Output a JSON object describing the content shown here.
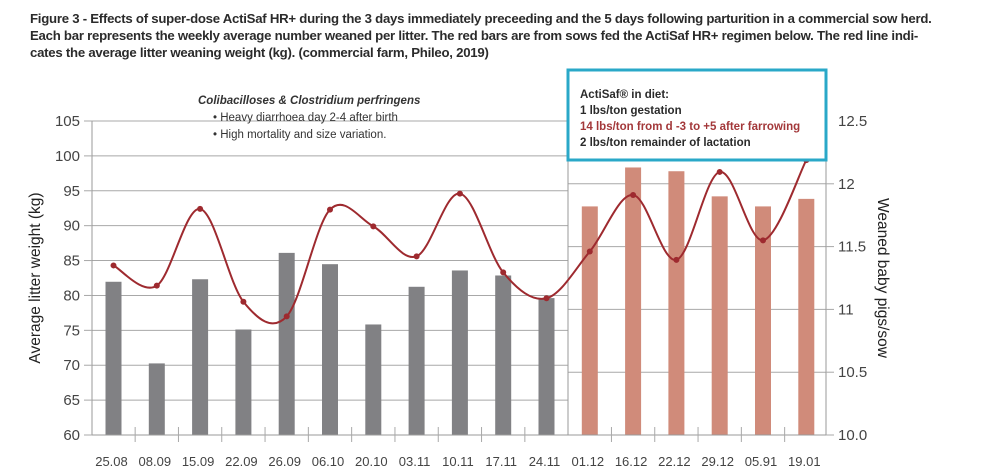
{
  "caption": {
    "line1": "Figure 3 - Effects of super-dose ActiSaf HR+ during the 3 days immediately preceeding and the 5 days following parturition in a commercial sow herd.",
    "line2": "Each bar represents the weekly average number weaned per litter.  The red bars are from sows fed the ActiSaf HR+ regimen below. The red line indi-",
    "line3": "cates the average litter weaning weight (kg). (commercial farm, Phileo, 2019)"
  },
  "annotation": {
    "title": "Colibacilloses & Clostridium perfringens",
    "bullets": [
      "• Heavy diarrhoea day 2-4 after birth",
      "• High mortality and size variation."
    ]
  },
  "info_box": {
    "lines": [
      {
        "text": "ActiSaf® in diet:",
        "highlight": false
      },
      {
        "text": "1 lbs/ton gestation",
        "highlight": false
      },
      {
        "text": "14 lbs/ton from d -3 to +5 after farrowing",
        "highlight": true
      },
      {
        "text": "2 lbs/ton remainder of lactation",
        "highlight": false
      }
    ]
  },
  "colors": {
    "gray_bar": "#818184",
    "red_bar": "#d08b7a",
    "line": "#9e2a2f",
    "box_border": "#2aa8c8",
    "grid": "#a8a8a8"
  },
  "chart_data": {
    "type": "bar",
    "title": "Figure 3 - Effects of super-dose ActiSaf HR+ during the 3 days immediately preceeding and the 5 days following parturition in a commercial sow herd.",
    "xlabel": "",
    "ylabel": "Average litter weight (kg)",
    "y2label": "Weaned baby pigs/sow",
    "ylim": [
      60,
      105
    ],
    "y2lim": [
      10.0,
      12.5
    ],
    "yticks": [
      "60",
      "65",
      "70",
      "75",
      "80",
      "85",
      "90",
      "95",
      "100",
      "105"
    ],
    "y2ticks": [
      "10.0",
      "10.5",
      "11",
      "11.5",
      "12",
      "12.5"
    ],
    "grid": true,
    "categories": [
      "25.08",
      "08.09",
      "15.09",
      "22.09",
      "26.09",
      "06.10",
      "20.10",
      "03.11",
      "10.11",
      "17.11",
      "24.11",
      "01.12",
      "16.12",
      "22.12",
      "29.12",
      "05.91",
      "19.01"
    ],
    "treatment_start_index": 11,
    "series": [
      {
        "name": "Weaned baby pigs/sow",
        "type": "bar",
        "axis": "right",
        "values": [
          11.22,
          10.57,
          11.24,
          10.84,
          11.45,
          11.36,
          10.88,
          11.18,
          11.31,
          11.27,
          11.09,
          11.82,
          12.13,
          12.1,
          11.9,
          11.82,
          11.88
        ]
      },
      {
        "name": "Average litter weaning weight (kg)",
        "type": "line",
        "axis": "left",
        "values": [
          84.3,
          81.4,
          92.4,
          79.1,
          77.0,
          92.3,
          89.9,
          85.6,
          94.6,
          83.3,
          79.6,
          86.3,
          94.4,
          85.1,
          97.7,
          87.9,
          99.4
        ]
      }
    ]
  }
}
